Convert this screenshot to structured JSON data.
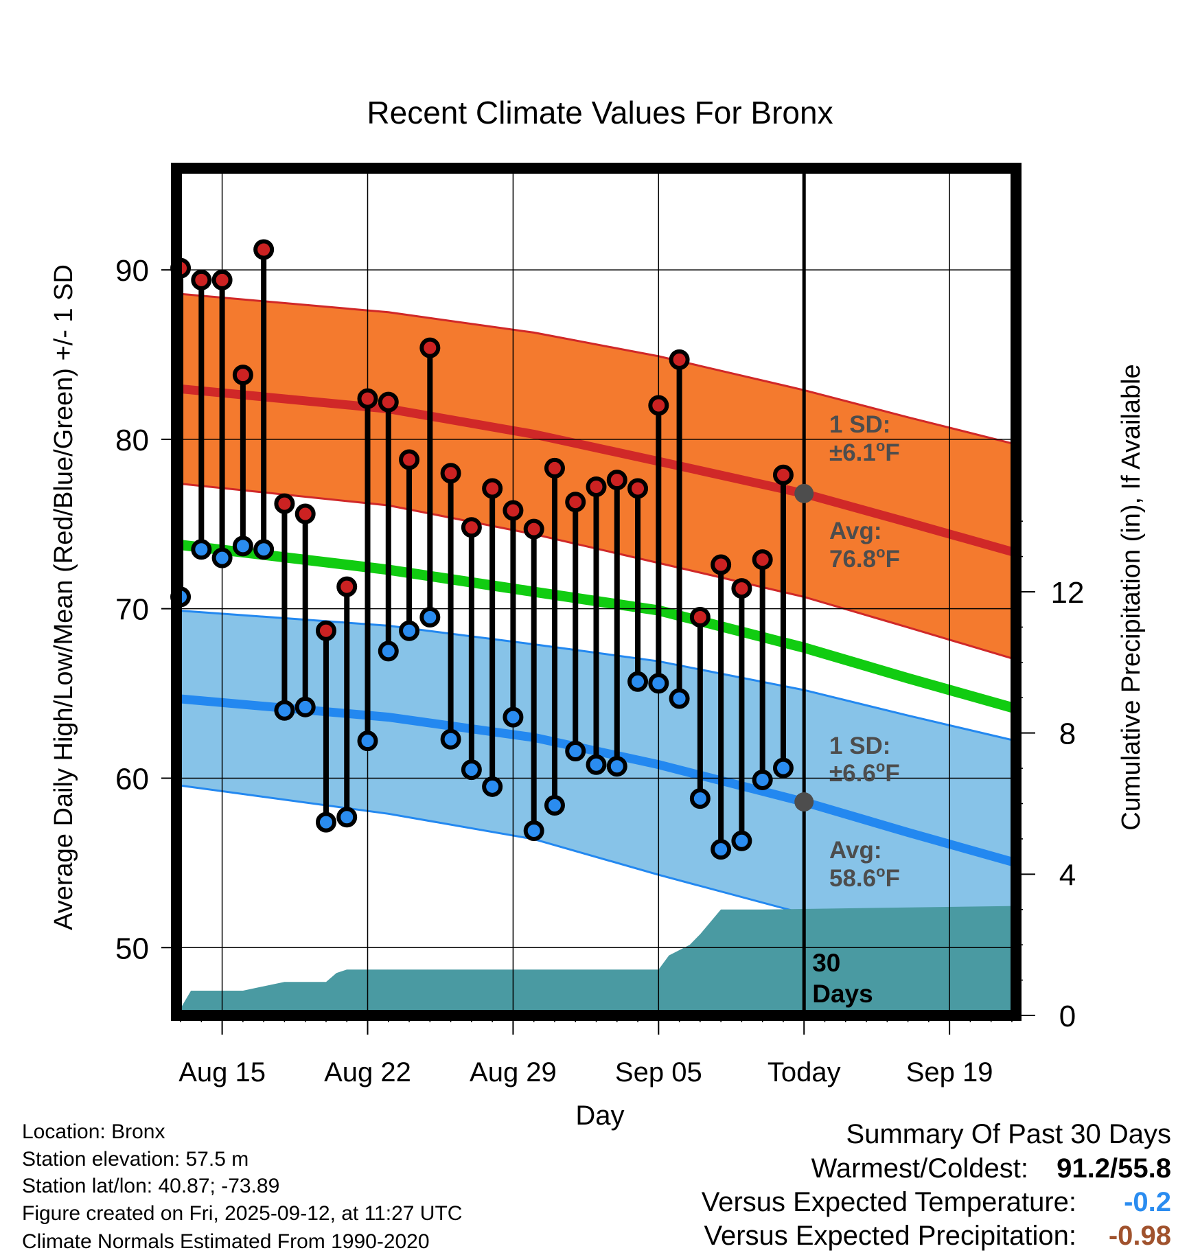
{
  "chart_data": {
    "type": "line",
    "title": "Recent Climate Values For Bronx",
    "xlabel": "Day",
    "ylabel": "Average Daily High/Low/Mean (Red/Blue/Green) +/- 1 SD",
    "y2label": "Cumulative Precipitation (in), If Available",
    "ylim": [
      46,
      96
    ],
    "y_ticks": [
      50,
      60,
      70,
      80,
      90
    ],
    "y2lim": [
      0,
      24
    ],
    "y2_ticks": [
      0,
      4,
      8,
      12
    ],
    "x_ticks": [
      {
        "day": 3,
        "label": "Aug 15"
      },
      {
        "day": 10,
        "label": "Aug 22"
      },
      {
        "day": 17,
        "label": "Aug 29"
      },
      {
        "day": 24,
        "label": "Sep 05"
      },
      {
        "day": 31,
        "label": "Today"
      },
      {
        "day": 38,
        "label": "Sep 19"
      }
    ],
    "xlim": [
      0.8,
      41.2
    ],
    "today_day": 31,
    "normals": {
      "days": [
        0.8,
        11,
        18,
        24,
        31,
        36,
        41.2
      ],
      "high_avg": [
        83.0,
        81.8,
        80.3,
        78.7,
        76.8,
        75.1,
        73.3
      ],
      "high_upper": [
        88.6,
        87.5,
        86.3,
        84.9,
        82.9,
        81.3,
        79.7
      ],
      "high_lower": [
        77.4,
        76.1,
        74.4,
        72.7,
        70.7,
        68.9,
        67.0
      ],
      "mean": [
        73.8,
        72.3,
        71.0,
        69.9,
        67.7,
        65.9,
        64.1
      ],
      "low_avg": [
        64.7,
        63.6,
        62.4,
        60.8,
        58.6,
        56.8,
        55.0
      ],
      "low_upper": [
        69.9,
        69.0,
        67.9,
        66.9,
        65.2,
        63.7,
        62.2
      ],
      "low_lower": [
        59.6,
        57.9,
        56.4,
        54.3,
        52.0,
        50.3,
        48.6
      ]
    },
    "series": [
      {
        "name": "Daily High",
        "color": "#cc2222",
        "days": [
          1,
          2,
          3,
          4,
          5,
          6,
          7,
          8,
          9,
          10,
          11,
          12,
          13,
          14,
          15,
          16,
          17,
          18,
          19,
          20,
          21,
          22,
          23,
          24,
          25,
          26,
          27,
          28,
          29,
          30
        ],
        "values": [
          90.1,
          89.4,
          89.4,
          83.8,
          91.2,
          76.2,
          75.6,
          68.7,
          71.3,
          82.4,
          82.2,
          78.8,
          85.4,
          78.0,
          74.8,
          77.1,
          75.8,
          74.7,
          78.3,
          76.3,
          77.2,
          77.6,
          77.1,
          82.0,
          84.7,
          69.5,
          72.6,
          71.2,
          72.9,
          77.9
        ]
      },
      {
        "name": "Daily Low",
        "color": "#2a8cf0",
        "days": [
          1,
          2,
          3,
          4,
          5,
          6,
          7,
          8,
          9,
          10,
          11,
          12,
          13,
          14,
          15,
          16,
          17,
          18,
          19,
          20,
          21,
          22,
          23,
          24,
          25,
          26,
          27,
          28,
          29,
          30
        ],
        "values": [
          70.7,
          73.5,
          73.0,
          73.7,
          73.5,
          64.0,
          64.2,
          57.4,
          57.7,
          62.2,
          67.5,
          68.7,
          69.5,
          62.3,
          60.5,
          59.5,
          63.6,
          56.9,
          58.4,
          61.6,
          60.8,
          60.7,
          65.7,
          65.6,
          64.7,
          58.8,
          55.8,
          56.3,
          59.9,
          60.6
        ]
      },
      {
        "name": "Cumulative Precipitation",
        "color": "#4a9aa2",
        "days": [
          0.8,
          1.5,
          4,
          6,
          8,
          8.5,
          9,
          10,
          12,
          24,
          24.5,
          25.5,
          26,
          27,
          29,
          41.2
        ],
        "values": [
          0,
          0.7,
          0.7,
          0.95,
          0.95,
          1.2,
          1.3,
          1.3,
          1.3,
          1.3,
          1.7,
          2.0,
          2.3,
          3.0,
          3.0,
          3.1
        ]
      }
    ],
    "annotations": {
      "high_sd_label": "1 SD:",
      "high_sd_value": "±6.1",
      "high_avg_label": "Avg:",
      "high_avg_value": "76.8",
      "low_sd_label": "1 SD:",
      "low_sd_value": "±6.6",
      "low_avg_label": "Avg:",
      "low_avg_value": "58.6",
      "unit_sup": "o",
      "unit_f": "F",
      "days_count": "30",
      "days_word": "Days"
    }
  },
  "colors": {
    "high_band": "#f47a2e",
    "high_line": "#d02828",
    "low_band": "#87c3e8",
    "low_line": "#2388f0",
    "mean_line": "#11cc11",
    "precip_fill": "#4a9aa2",
    "annotation_text": "#4d4d4d",
    "neg_temp": "#2a8cf0",
    "neg_precip": "#a0522d"
  },
  "footer": {
    "location": "Location: Bronx",
    "elevation": "Station elevation: 57.5 m",
    "latlon": "Station lat/lon: 40.87; -73.89",
    "created": "Figure created on Fri, 2025-09-12, at 11:27 UTC",
    "normals": "Climate Normals Estimated From 1990-2020"
  },
  "summary": {
    "title": "Summary Of Past 30 Days",
    "warm_cold_label": "Warmest/Coldest:",
    "warm_cold_value": "91.2/55.8",
    "temp_label": "Versus Expected Temperature:",
    "temp_value": "-0.2",
    "precip_label": "Versus Expected Precipitation:",
    "precip_value": "-0.98"
  }
}
